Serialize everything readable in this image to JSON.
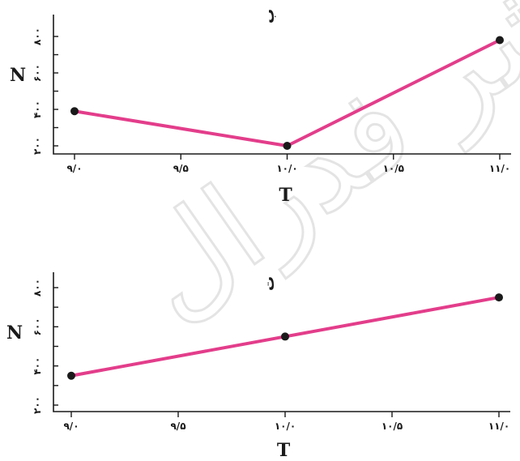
{
  "watermark": "نشر فدرال",
  "colors": {
    "series": "#e33d8b",
    "axis": "#1a1a1a",
    "point": "#1a1a1a"
  },
  "chart_data": [
    {
      "type": "line",
      "panel_label": "ب",
      "xlabel": "T",
      "ylabel": "N",
      "x_ticks": [
        "۹/۰",
        "۹/۵",
        "۱۰/۰",
        "۱۰/۵",
        "۱۱/۰"
      ],
      "y_ticks": [
        "۲۰۰",
        "۴۰۰",
        "۶۰۰",
        "۸۰۰"
      ],
      "xlim": [
        9.0,
        11.0
      ],
      "ylim": [
        200,
        800
      ],
      "x": [
        9.0,
        10.0,
        11.0
      ],
      "y": [
        390,
        200,
        780
      ],
      "grid": false
    },
    {
      "type": "line",
      "panel_label": "ت",
      "xlabel": "T",
      "ylabel": "N",
      "x_ticks": [
        "۹/۰",
        "۹/۵",
        "۱۰/۰",
        "۱۰/۵",
        "۱۱/۰"
      ],
      "y_ticks": [
        "۲۰۰",
        "۴۰۰",
        "۶۰۰",
        "۸۰۰"
      ],
      "xlim": [
        9.0,
        11.0
      ],
      "ylim": [
        200,
        800
      ],
      "x": [
        9.0,
        10.0,
        11.0
      ],
      "y": [
        350,
        550,
        750
      ],
      "grid": false
    }
  ]
}
